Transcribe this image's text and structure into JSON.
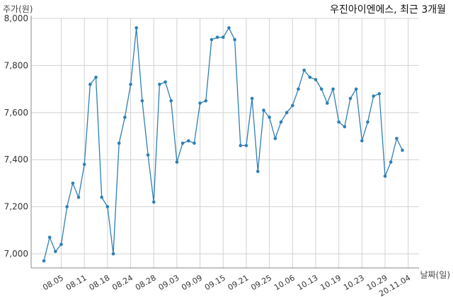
{
  "chart_data": {
    "type": "line",
    "title": "우진아이엔에스, 최근 3개월",
    "ylabel": "주가(원)",
    "xlabel": "날짜(일)",
    "ylim": [
      6940,
      8000
    ],
    "yticks": [
      7000,
      7200,
      7400,
      7600,
      7800,
      8000
    ],
    "ytick_labels": [
      "7,000",
      "7,200",
      "7,400",
      "7,600",
      "7,800",
      "8,000"
    ],
    "xtick_labels": [
      "08.05",
      "08.11",
      "08.18",
      "08.24",
      "08.28",
      "09.03",
      "09.09",
      "09.15",
      "09.21",
      "09.25",
      "10.06",
      "10.13",
      "10.19",
      "10.23",
      "10.29",
      "20.11.04"
    ],
    "xtick_index": [
      3,
      7,
      11,
      15,
      19,
      23,
      27,
      31,
      35,
      39,
      43,
      47,
      51,
      55,
      59,
      63
    ],
    "grid": true,
    "color": "#2e7fb5",
    "series": [
      {
        "name": "",
        "values": [
          6970,
          7070,
          7010,
          7040,
          7200,
          7300,
          7240,
          7380,
          7720,
          7750,
          7240,
          7200,
          7000,
          7470,
          7580,
          7720,
          7960,
          7650,
          7420,
          7220,
          7720,
          7730,
          7650,
          7390,
          7470,
          7480,
          7470,
          7640,
          7650,
          7910,
          7920,
          7920,
          7960,
          7910,
          7460,
          7460,
          7660,
          7350,
          7610,
          7580,
          7490,
          7560,
          7600,
          7630,
          7700,
          7780,
          7750,
          7740,
          7700,
          7640,
          7700,
          7560,
          7540,
          7660,
          7700,
          7480,
          7560,
          7670,
          7680,
          7330,
          7390,
          7490,
          7440
        ]
      }
    ]
  }
}
